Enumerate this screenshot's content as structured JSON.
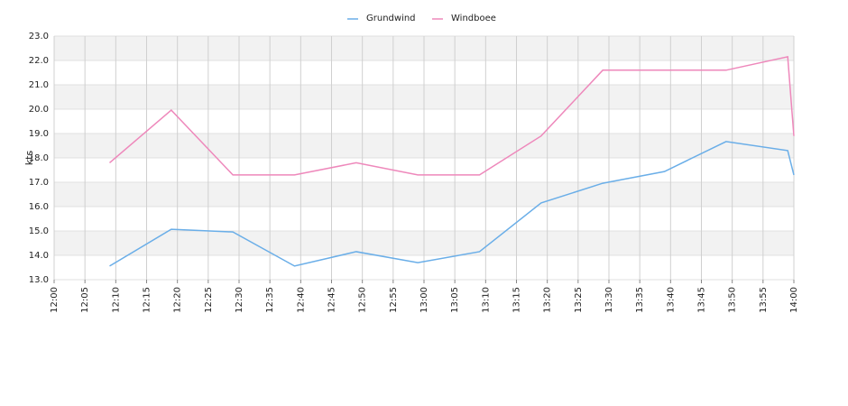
{
  "chart_data": {
    "type": "line",
    "y_label": "kts",
    "x": [
      "12:09",
      "12:19",
      "12:29",
      "12:39",
      "12:49",
      "12:59",
      "13:09",
      "13:19",
      "13:29",
      "13:39",
      "13:49",
      "13:59",
      "14:00"
    ],
    "series": [
      {
        "name": "Grundwind",
        "color": "#6aaee8",
        "values": [
          13.56,
          15.07,
          14.96,
          13.56,
          14.15,
          13.7,
          14.15,
          16.15,
          16.96,
          17.44,
          18.67,
          18.3,
          17.3
        ]
      },
      {
        "name": "Windboee",
        "color": "#ee88bb",
        "values": [
          17.8,
          19.96,
          17.3,
          17.3,
          17.8,
          17.3,
          17.3,
          18.9,
          21.6,
          21.6,
          21.6,
          22.15,
          18.9
        ]
      }
    ],
    "xlim": [
      "12:00",
      "14:00"
    ],
    "xticks": [
      "12:00",
      "12:05",
      "12:10",
      "12:15",
      "12:20",
      "12:25",
      "12:30",
      "12:35",
      "12:40",
      "12:45",
      "12:50",
      "12:55",
      "13:00",
      "13:05",
      "13:10",
      "13:15",
      "13:20",
      "13:25",
      "13:30",
      "13:35",
      "13:40",
      "13:45",
      "13:50",
      "13:55",
      "14:00"
    ],
    "ylim": [
      13,
      23
    ],
    "yticks": [
      {
        "value": 13,
        "label": "13.0"
      },
      {
        "value": 14,
        "label": "14.0"
      },
      {
        "value": 15,
        "label": "15.0"
      },
      {
        "value": 16,
        "label": "16.0"
      },
      {
        "value": 17,
        "label": "17.0"
      },
      {
        "value": 18,
        "label": "18.0"
      },
      {
        "value": 19,
        "label": "19.0"
      },
      {
        "value": 20,
        "label": "20.0"
      },
      {
        "value": 21,
        "label": "21.0"
      },
      {
        "value": 22,
        "label": "22.0"
      },
      {
        "value": 23,
        "label": "23.0"
      }
    ],
    "grid": true,
    "legend": "top"
  }
}
